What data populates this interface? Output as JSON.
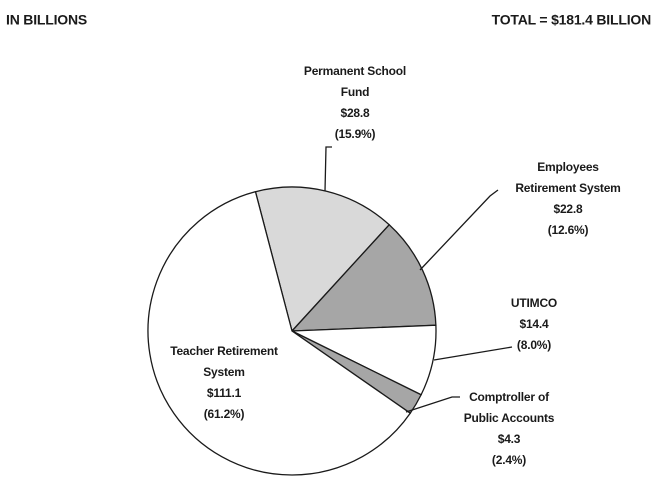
{
  "chart_data": {
    "type": "pie",
    "subtitle": "IN BILLIONS",
    "total_label": "TOTAL = $181.4 BILLION",
    "categories": [
      [
        "Permanent School",
        "Fund"
      ],
      [
        "Employees",
        "Retirement System"
      ],
      [
        "UTIMCO"
      ],
      [
        "Comptroller of",
        "Public Accounts"
      ],
      [
        "Teacher Retirement",
        "System"
      ]
    ],
    "values": [
      28.8,
      22.8,
      14.4,
      4.3,
      111.1
    ],
    "value_labels": [
      "$28.8",
      "$22.8",
      "$14.4",
      "$4.3",
      "$111.1"
    ],
    "percentages": [
      15.9,
      12.6,
      8.0,
      2.4,
      61.2
    ],
    "percentage_labels": [
      "(15.9%)",
      "(12.6%)",
      "(8.0%)",
      "(2.4%)",
      "(61.2%)"
    ],
    "colors": [
      "#d9d9d9",
      "#a6a6a6",
      "#ffffff",
      "#a6a6a6",
      "#ffffff"
    ]
  }
}
